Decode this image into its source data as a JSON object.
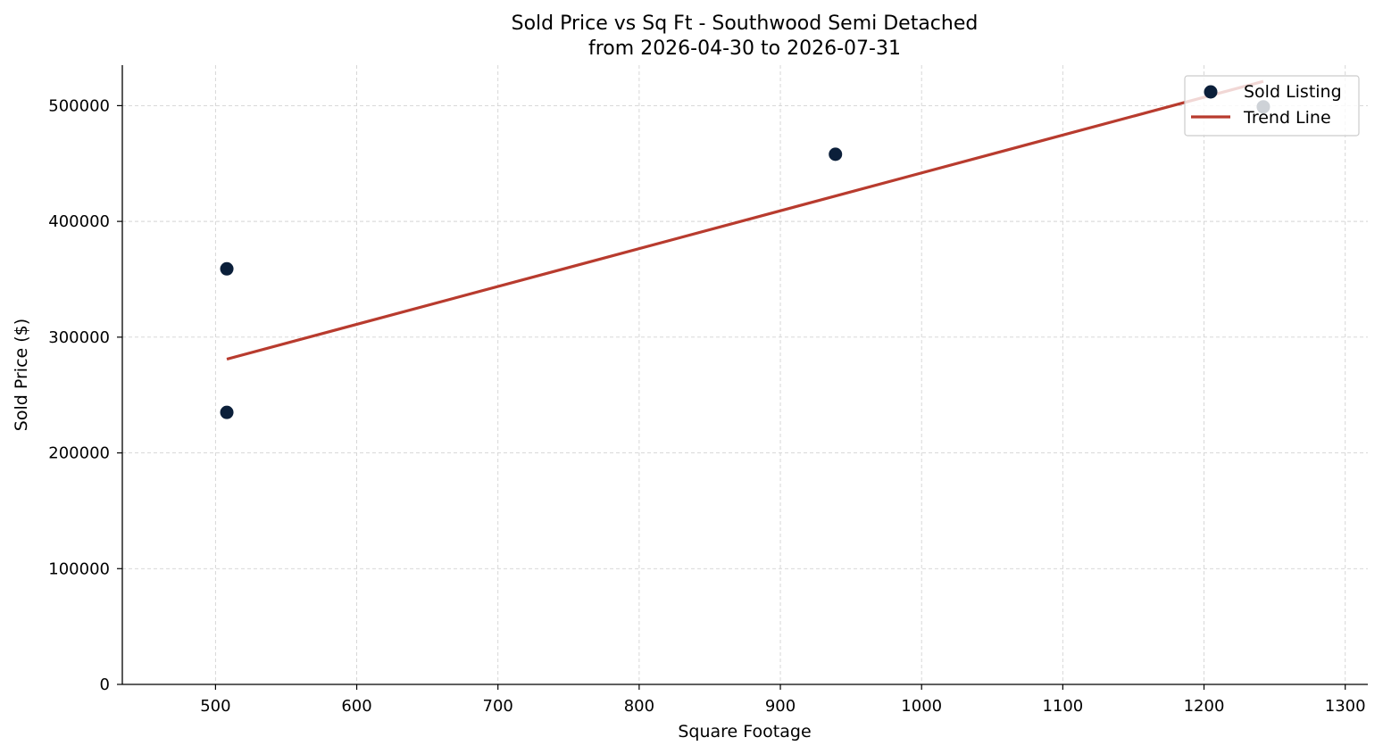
{
  "chart_data": {
    "type": "scatter",
    "title_line1": "Sold Price vs Sq Ft - Southwood Semi Detached",
    "title_line2": "from 2026-04-30 to 2026-07-31",
    "xlabel": "Square Footage",
    "ylabel": "Sold Price ($)",
    "xlim": [
      434,
      1316
    ],
    "ylim": [
      0,
      535000
    ],
    "xticks": [
      500,
      600,
      700,
      800,
      900,
      1000,
      1100,
      1200,
      1300
    ],
    "yticks": [
      0,
      100000,
      200000,
      300000,
      400000,
      500000
    ],
    "grid": true,
    "legend_position": "top-right",
    "series": [
      {
        "name": "Sold Listing",
        "kind": "scatter",
        "color": "#0b1f3a",
        "points": [
          {
            "x": 508,
            "y": 359000
          },
          {
            "x": 508,
            "y": 235000
          },
          {
            "x": 939,
            "y": 458000
          },
          {
            "x": 1242,
            "y": 499000
          }
        ]
      },
      {
        "name": "Trend Line",
        "kind": "line",
        "color": "#b83b2e",
        "points": [
          {
            "x": 508,
            "y": 281000
          },
          {
            "x": 1242,
            "y": 521000
          }
        ]
      }
    ]
  }
}
